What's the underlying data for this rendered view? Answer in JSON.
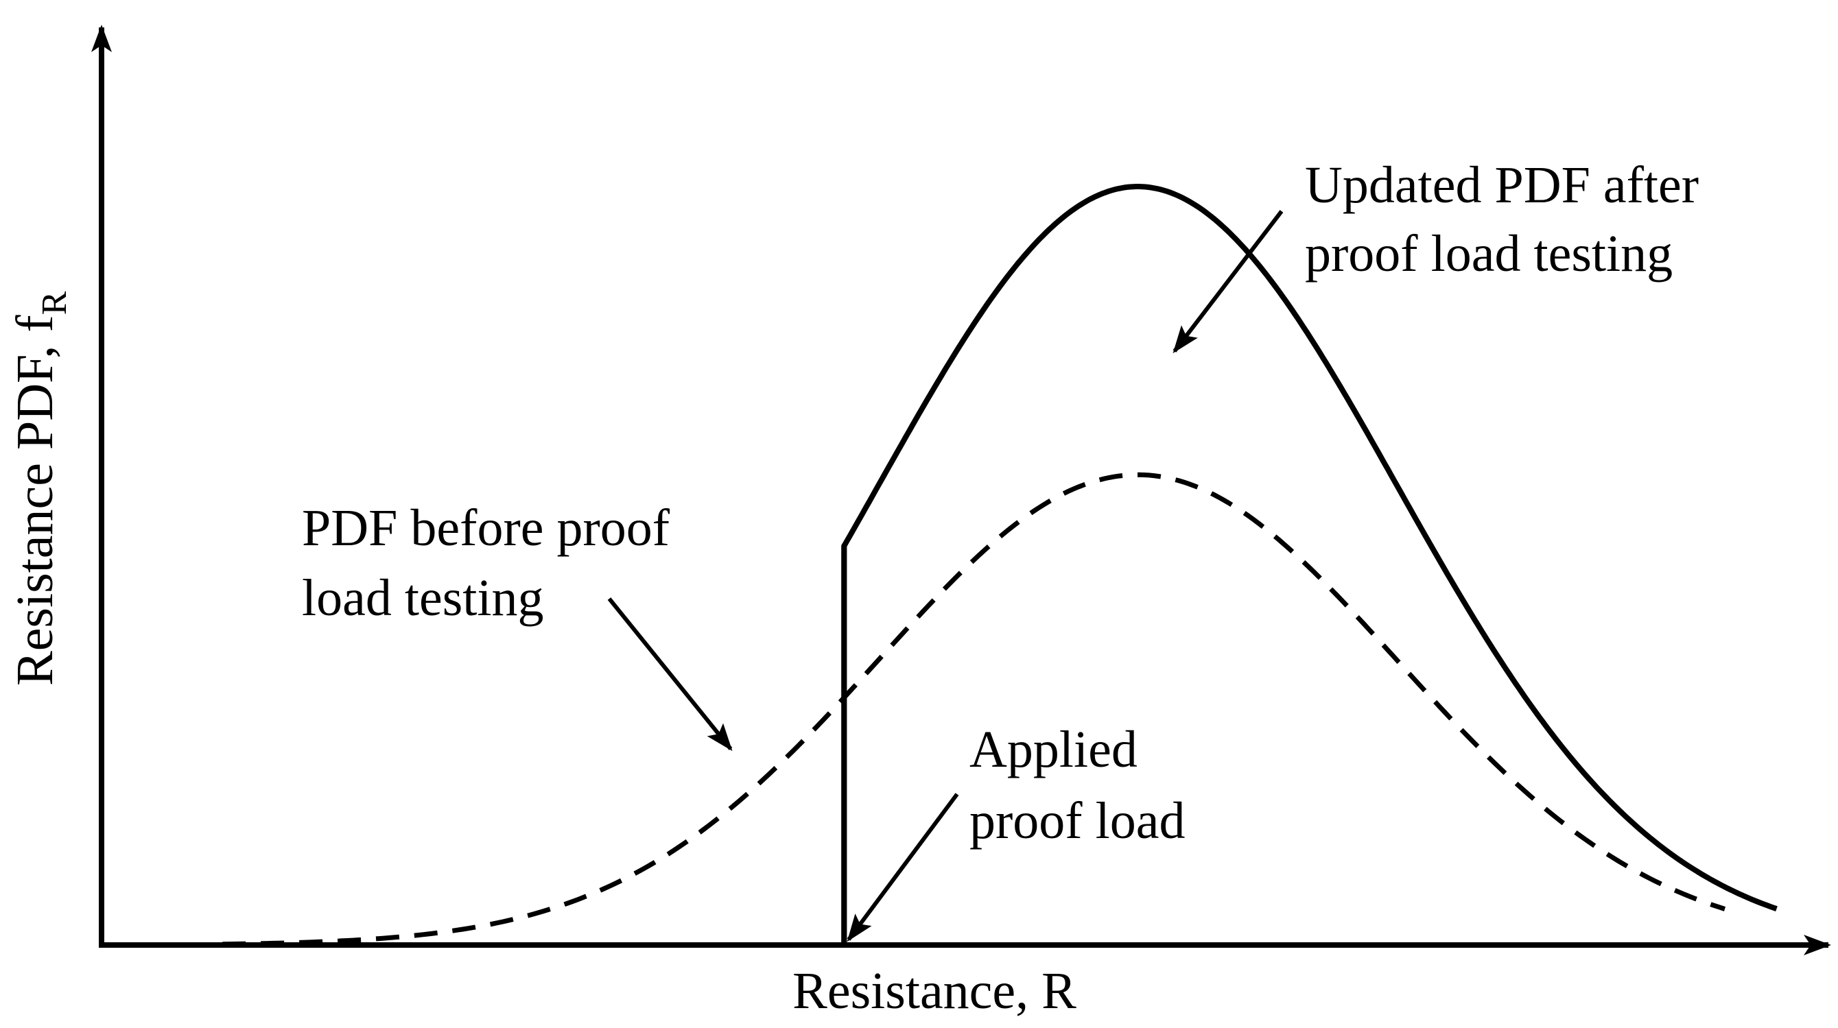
{
  "axes": {
    "x_label": "Resistance, R",
    "y_label_main": "Resistance PDF, f",
    "y_label_subscript": "R"
  },
  "curves": {
    "prior": {
      "line_style": "dashed",
      "mean": 0.6,
      "std_dev": 0.15,
      "peak_density": 0.62,
      "domain": [
        0.0,
        1.0
      ]
    },
    "updated": {
      "line_style": "solid",
      "truncation_at": 0.43,
      "peak_density": 1.0
    },
    "proof_load": {
      "line_style": "solid",
      "x": 0.43
    }
  },
  "annotations": {
    "updated_pdf": [
      "Updated PDF after",
      "proof load testing"
    ],
    "prior_pdf": [
      "PDF before proof",
      "load testing"
    ],
    "proof_load": [
      "Applied",
      "proof load"
    ]
  },
  "colors": {
    "ink": "#000000",
    "background": "#ffffff"
  }
}
